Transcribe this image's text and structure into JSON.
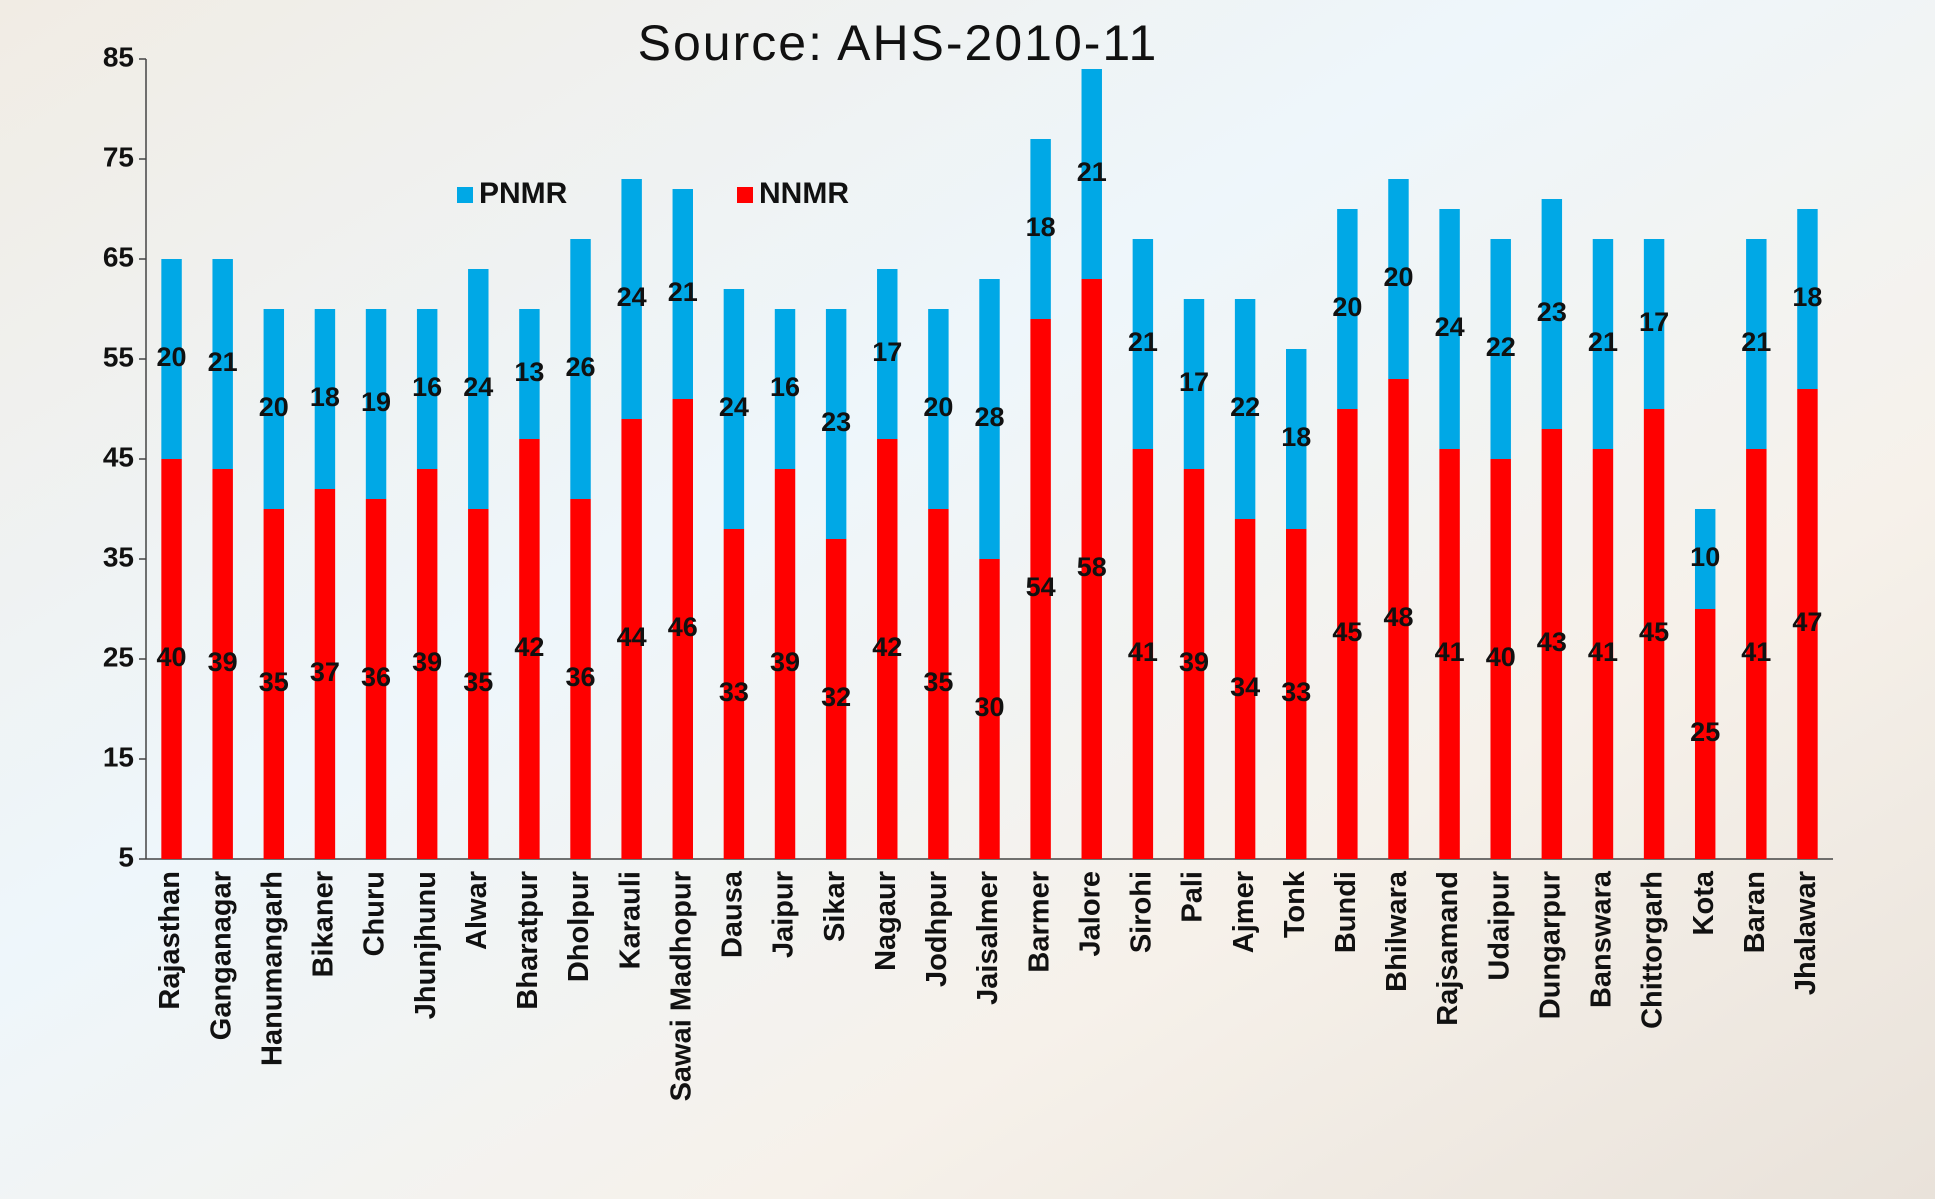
{
  "chart_data": {
    "type": "stacked_bar",
    "title": "Source: AHS-2010-11",
    "categories": [
      "Rajasthan",
      "Ganganagar",
      "Hanumangarh",
      "Bikaner",
      "Churu",
      "Jhunjhunu",
      "Alwar",
      "Bharatpur",
      "Dholpur",
      "Karauli",
      "Sawai Madhopur",
      "Dausa",
      "Jaipur",
      "Sikar",
      "Nagaur",
      "Jodhpur",
      "Jaisalmer",
      "Barmer",
      "Jalore",
      "Sirohi",
      "Pali",
      "Ajmer",
      "Tonk",
      "Bundi",
      "Bhilwara",
      "Rajsamand",
      "Udaipur",
      "Dungarpur",
      "Banswara",
      "Chittorgarh",
      "Kota",
      "Baran",
      "Jhalawar"
    ],
    "series": [
      {
        "name": "NNMR",
        "color": "#ff0000",
        "values": [
          40,
          39,
          35,
          37,
          36,
          39,
          35,
          42,
          36,
          44,
          46,
          33,
          39,
          32,
          42,
          35,
          30,
          54,
          58,
          41,
          39,
          34,
          33,
          45,
          48,
          41,
          40,
          43,
          41,
          45,
          25,
          41,
          47
        ]
      },
      {
        "name": "PNMR",
        "color": "#00a8e6",
        "values": [
          20,
          21,
          20,
          18,
          19,
          16,
          24,
          13,
          26,
          24,
          21,
          24,
          16,
          23,
          17,
          20,
          28,
          18,
          21,
          21,
          17,
          22,
          18,
          20,
          20,
          24,
          22,
          23,
          21,
          17,
          10,
          21,
          18
        ]
      }
    ],
    "ylim": [
      5,
      85
    ],
    "yticks": [
      5,
      15,
      25,
      35,
      45,
      55,
      65,
      75,
      85
    ]
  }
}
